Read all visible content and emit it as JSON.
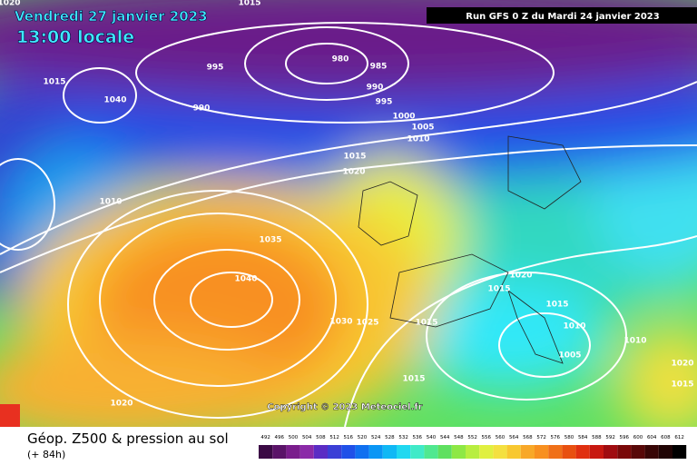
{
  "header": {
    "date": "Vendredi 27 janvier 2023",
    "time": "13:00 locale",
    "run": "Run GFS 0 Z du Mardi 24 janvier 2023"
  },
  "isobars": [
    1015,
    995,
    980,
    985,
    990,
    995,
    990,
    1000,
    1005,
    1010,
    1040,
    1015,
    1010,
    1015,
    1020,
    1035,
    1040,
    1030,
    1025,
    1015,
    1020,
    1015,
    1015,
    1010,
    1005,
    1010,
    1015,
    1020,
    1020,
    1015,
    1020
  ],
  "copyright": "Copyright © 2023 Meteociel.fr",
  "footer": {
    "title": "Géop. Z500 & pression au sol",
    "lead": "(+ 84h)"
  },
  "scale": {
    "ticks": [
      492,
      496,
      500,
      504,
      508,
      512,
      516,
      520,
      524,
      528,
      532,
      536,
      540,
      544,
      548,
      552,
      556,
      560,
      564,
      568,
      572,
      576,
      580,
      584,
      588,
      592,
      596,
      600,
      604,
      608,
      612
    ],
    "colors": [
      "#3b0a45",
      "#5a1368",
      "#7a1d8c",
      "#8b2aa8",
      "#5b2cc4",
      "#3b3fd6",
      "#2050e8",
      "#1070f0",
      "#0a96f5",
      "#10b8f5",
      "#20d8f0",
      "#40eac8",
      "#50e890",
      "#5fe060",
      "#8ee845",
      "#b8ee40",
      "#e0f040",
      "#f4e040",
      "#f8c830",
      "#f8a828",
      "#f89020",
      "#f07018",
      "#e85010",
      "#e03010",
      "#c81810",
      "#a00c10",
      "#7a0808",
      "#580808",
      "#380606",
      "#200404",
      "#000000"
    ]
  }
}
